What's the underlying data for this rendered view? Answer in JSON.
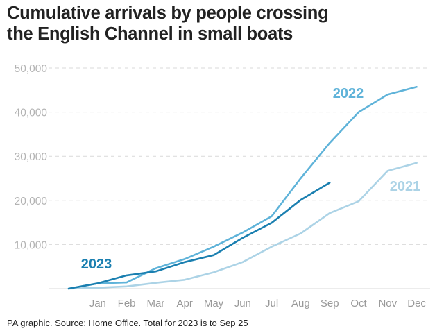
{
  "header": {
    "title_line1": "Cumulative arrivals by people crossing",
    "title_line2": "the English Channel in small boats"
  },
  "footer": {
    "source": "PA graphic. Source: Home Office. Total for 2023 is to Sep 25"
  },
  "chart_data": {
    "type": "line",
    "title": "Cumulative arrivals by people crossing the English Channel in small boats",
    "xlabel": "",
    "ylabel": "",
    "categories": [
      "",
      "Jan",
      "Feb",
      "Mar",
      "Apr",
      "May",
      "Jun",
      "Jul",
      "Aug",
      "Sep",
      "Oct",
      "Nov",
      "Dec"
    ],
    "ylim": [
      0,
      50000
    ],
    "yticks": [
      10000,
      20000,
      30000,
      40000,
      50000
    ],
    "ytick_labels": [
      "10,000",
      "20,000",
      "30,000",
      "40,000",
      "50,000"
    ],
    "grid": true,
    "legend": "direct labels on lines",
    "series": [
      {
        "name": "2021",
        "color": "#acd3e6",
        "values": [
          0,
          200,
          500,
          1300,
          2000,
          3700,
          6000,
          9500,
          12500,
          17100,
          19800,
          26700,
          28500
        ]
      },
      {
        "name": "2022",
        "color": "#5fb3d9",
        "values": [
          0,
          1200,
          1400,
          4600,
          6700,
          9500,
          12700,
          16400,
          25000,
          33000,
          40000,
          44000,
          45700
        ]
      },
      {
        "name": "2023",
        "color": "#1a7fb0",
        "values": [
          0,
          1200,
          3000,
          3900,
          6000,
          7600,
          11500,
          14900,
          20100,
          24000,
          null,
          null,
          null
        ]
      }
    ]
  }
}
